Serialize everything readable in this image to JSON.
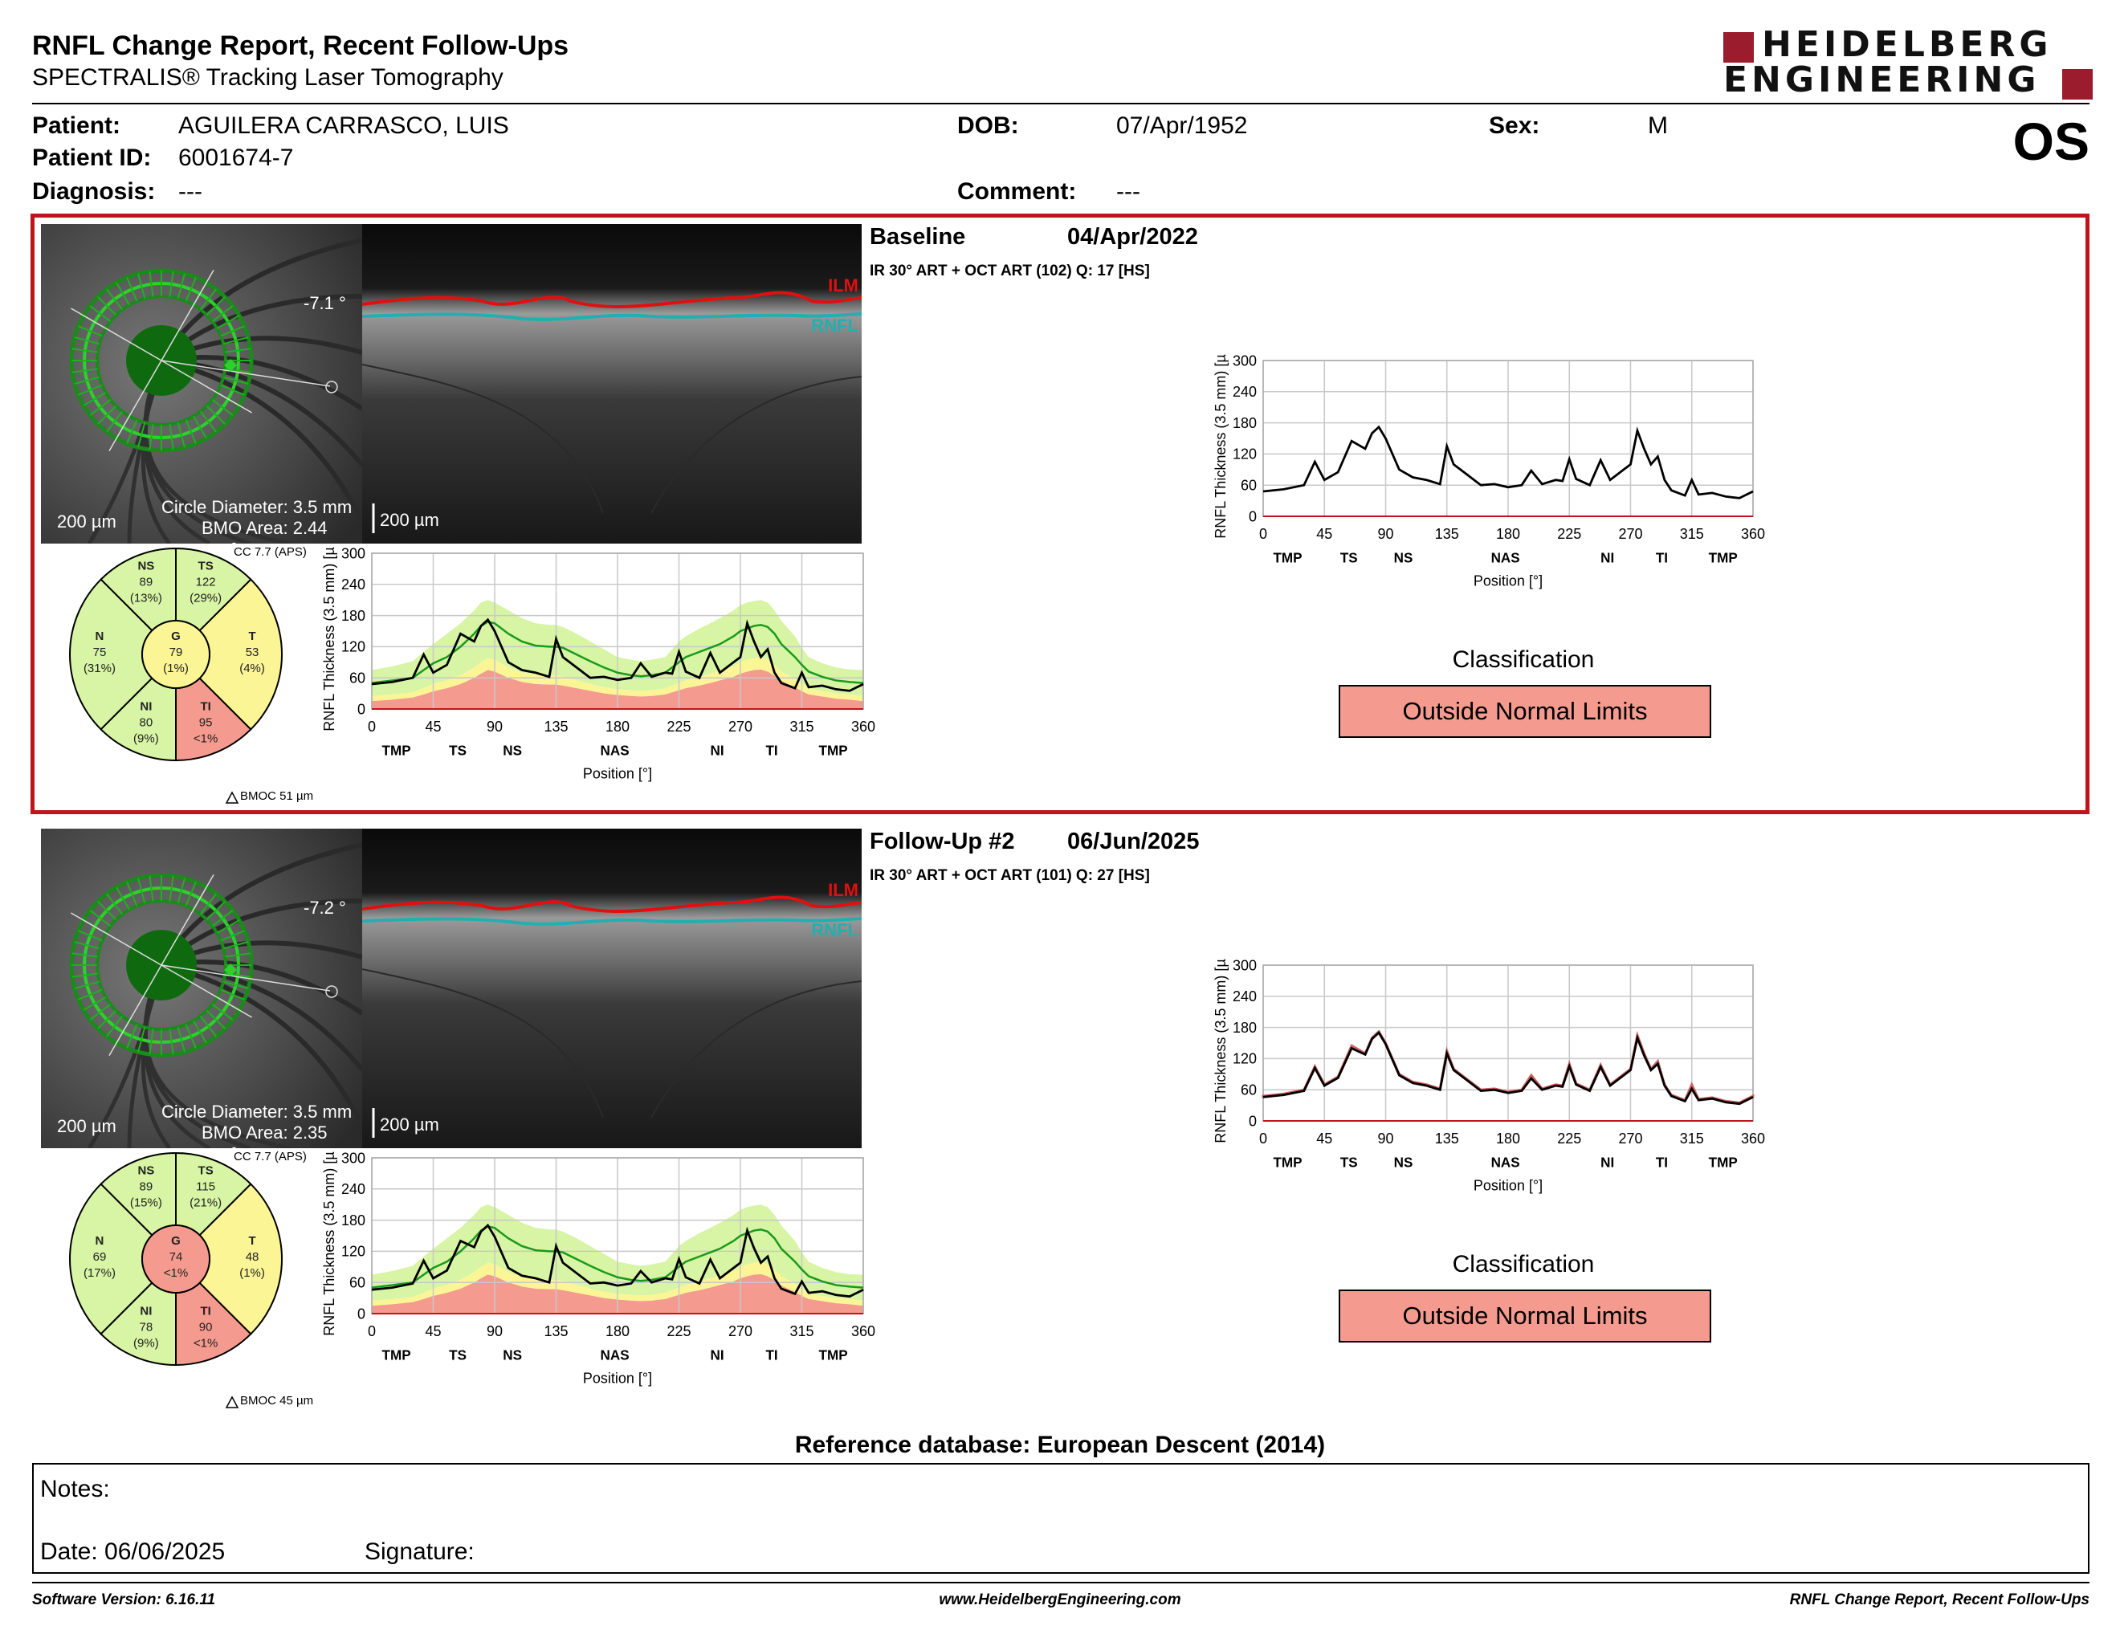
{
  "header": {
    "title": "RNFL Change Report, Recent Follow-Ups",
    "subtitle": "SPECTRALIS® Tracking Laser Tomography",
    "logo_line1": "HEIDELBERG",
    "logo_line2": "ENGINEERING",
    "eye": "OS"
  },
  "patient": {
    "patient_label": "Patient:",
    "patient": "AGUILERA CARRASCO, LUIS",
    "id_label": "Patient ID:",
    "id": "6001674-7",
    "diag_label": "Diagnosis:",
    "diagnosis": "---",
    "dob_label": "DOB:",
    "dob": "07/Apr/1952",
    "comment_label": "Comment:",
    "comment": "---",
    "sex_label": "Sex:",
    "sex": "M"
  },
  "colors": {
    "outside_normal": "#f59a8e",
    "borderline": "#fbf595",
    "within_normal": "#d7f5a4",
    "highlight": "#c0141c"
  },
  "exams": [
    {
      "name": "Baseline",
      "date": "04/Apr/2022",
      "scan": "IR 30° ART + OCT ART (102) Q: 17 [HS]",
      "angle": "-7.1 °",
      "scale_fundus": "200 µm",
      "scale_oct": "200 µm",
      "circle_diameter": "Circle Diameter: 3.5 mm",
      "bmo_area": "BMO Area: 2.44 mm²",
      "cc": "CC 7.7 (APS)",
      "bmoc": "BMOC 51 µm",
      "ilm": "ILM",
      "rnfl": "RNFL",
      "sectors": {
        "NS": {
          "label": "NS",
          "value": "89",
          "pct": "(13%)"
        },
        "TS": {
          "label": "TS",
          "value": "122",
          "pct": "(29%)"
        },
        "T": {
          "label": "T",
          "value": "53",
          "pct": "(4%)"
        },
        "TI": {
          "label": "TI",
          "value": "95",
          "pct": "<1%"
        },
        "NI": {
          "label": "NI",
          "value": "80",
          "pct": "(9%)"
        },
        "N": {
          "label": "N",
          "value": "75",
          "pct": "(31%)"
        },
        "G": {
          "label": "G",
          "value": "79",
          "pct": "(1%)"
        }
      },
      "classification_label": "Classification",
      "classification": "Outside Normal Limits"
    },
    {
      "name": "Follow-Up #2",
      "date": "06/Jun/2025",
      "scan": "IR 30° ART + OCT ART (101) Q: 27 [HS]",
      "angle": "-7.2 °",
      "scale_fundus": "200 µm",
      "scale_oct": "200 µm",
      "circle_diameter": "Circle Diameter: 3.5 mm",
      "bmo_area": "BMO Area: 2.35 mm²",
      "cc": "CC 7.7 (APS)",
      "bmoc": "BMOC 45 µm",
      "ilm": "ILM",
      "rnfl": "RNFL",
      "sectors": {
        "NS": {
          "label": "NS",
          "value": "89",
          "pct": "(15%)"
        },
        "TS": {
          "label": "TS",
          "value": "115",
          "pct": "(21%)"
        },
        "T": {
          "label": "T",
          "value": "48",
          "pct": "(1%)"
        },
        "TI": {
          "label": "TI",
          "value": "90",
          "pct": "<1%"
        },
        "NI": {
          "label": "NI",
          "value": "78",
          "pct": "(9%)"
        },
        "N": {
          "label": "N",
          "value": "69",
          "pct": "(17%)"
        },
        "G": {
          "label": "G",
          "value": "74",
          "pct": "<1%"
        }
      },
      "classification_label": "Classification",
      "classification": "Outside Normal Limits"
    }
  ],
  "chart_data": [
    {
      "type": "line",
      "title": "",
      "ylabel": "RNFL Thickness (3.5 mm) [µm]",
      "xlabel": "Position [°]",
      "xlim": [
        0,
        360
      ],
      "ylim": [
        0,
        300
      ],
      "xticks": [
        "0",
        "45",
        "90",
        "135",
        "180",
        "225",
        "270",
        "315",
        "360"
      ],
      "yticks": [
        "0",
        "60",
        "120",
        "180",
        "240",
        "300"
      ],
      "sector_labels": [
        {
          "x": 18,
          "t": "TMP"
        },
        {
          "x": 63,
          "t": "TS"
        },
        {
          "x": 103,
          "t": "NS"
        },
        {
          "x": 178,
          "t": "NAS"
        },
        {
          "x": 253,
          "t": "NI"
        },
        {
          "x": 293,
          "t": "TI"
        },
        {
          "x": 338,
          "t": "TMP"
        }
      ],
      "x": [
        0,
        15,
        30,
        38,
        45,
        55,
        65,
        75,
        80,
        85,
        90,
        100,
        110,
        120,
        130,
        135,
        140,
        150,
        160,
        170,
        180,
        190,
        197,
        205,
        215,
        220,
        225,
        230,
        240,
        248,
        255,
        265,
        270,
        275,
        280,
        285,
        290,
        295,
        300,
        310,
        315,
        320,
        330,
        340,
        350,
        360
      ],
      "normal_mean": [
        50,
        55,
        60,
        75,
        88,
        100,
        120,
        145,
        160,
        168,
        165,
        145,
        130,
        122,
        120,
        120,
        118,
        105,
        92,
        80,
        70,
        65,
        63,
        65,
        70,
        80,
        90,
        100,
        110,
        118,
        125,
        140,
        150,
        155,
        160,
        162,
        158,
        145,
        125,
        100,
        85,
        72,
        62,
        55,
        52,
        50
      ],
      "lim5": [
        25,
        28,
        32,
        40,
        48,
        55,
        65,
        80,
        90,
        98,
        95,
        80,
        70,
        66,
        65,
        65,
        62,
        55,
        48,
        42,
        38,
        36,
        35,
        36,
        40,
        45,
        50,
        55,
        62,
        68,
        74,
        82,
        90,
        95,
        98,
        100,
        95,
        85,
        72,
        58,
        48,
        40,
        34,
        30,
        28,
        25
      ],
      "lim1": [
        15,
        18,
        22,
        28,
        34,
        40,
        48,
        60,
        68,
        75,
        72,
        60,
        52,
        48,
        47,
        47,
        45,
        40,
        35,
        30,
        27,
        25,
        24,
        25,
        28,
        32,
        36,
        40,
        45,
        50,
        55,
        62,
        68,
        72,
        75,
        76,
        72,
        64,
        54,
        42,
        34,
        28,
        24,
        20,
        18,
        15
      ],
      "lim95": [
        75,
        82,
        92,
        110,
        125,
        145,
        165,
        190,
        205,
        210,
        205,
        190,
        175,
        165,
        162,
        162,
        158,
        145,
        130,
        115,
        100,
        95,
        92,
        95,
        100,
        115,
        130,
        140,
        155,
        165,
        175,
        190,
        200,
        205,
        208,
        210,
        205,
        190,
        170,
        140,
        118,
        100,
        88,
        80,
        76,
        75
      ]
    }
  ],
  "series": {
    "baseline": [
      48,
      52,
      60,
      105,
      70,
      85,
      145,
      130,
      160,
      172,
      150,
      90,
      75,
      70,
      62,
      135,
      100,
      80,
      60,
      62,
      56,
      60,
      88,
      62,
      70,
      68,
      110,
      72,
      60,
      108,
      70,
      90,
      100,
      165,
      130,
      100,
      115,
      70,
      50,
      40,
      70,
      42,
      45,
      38,
      35,
      48
    ],
    "followup": [
      46,
      50,
      58,
      102,
      68,
      83,
      140,
      128,
      158,
      170,
      148,
      88,
      73,
      68,
      60,
      130,
      98,
      78,
      58,
      60,
      54,
      58,
      82,
      60,
      68,
      66,
      105,
      70,
      58,
      104,
      68,
      88,
      98,
      160,
      126,
      98,
      110,
      68,
      48,
      38,
      62,
      40,
      43,
      36,
      33,
      46
    ]
  },
  "reference_db": "Reference database: European Descent (2014)",
  "notes": {
    "notes_label": "Notes:",
    "date_label": "Date: 06/06/2025",
    "signature_label": "Signature:"
  },
  "footer": {
    "left": "Software Version: 6.16.11",
    "center": "www.HeidelbergEngineering.com",
    "right": "RNFL Change Report, Recent Follow-Ups"
  }
}
